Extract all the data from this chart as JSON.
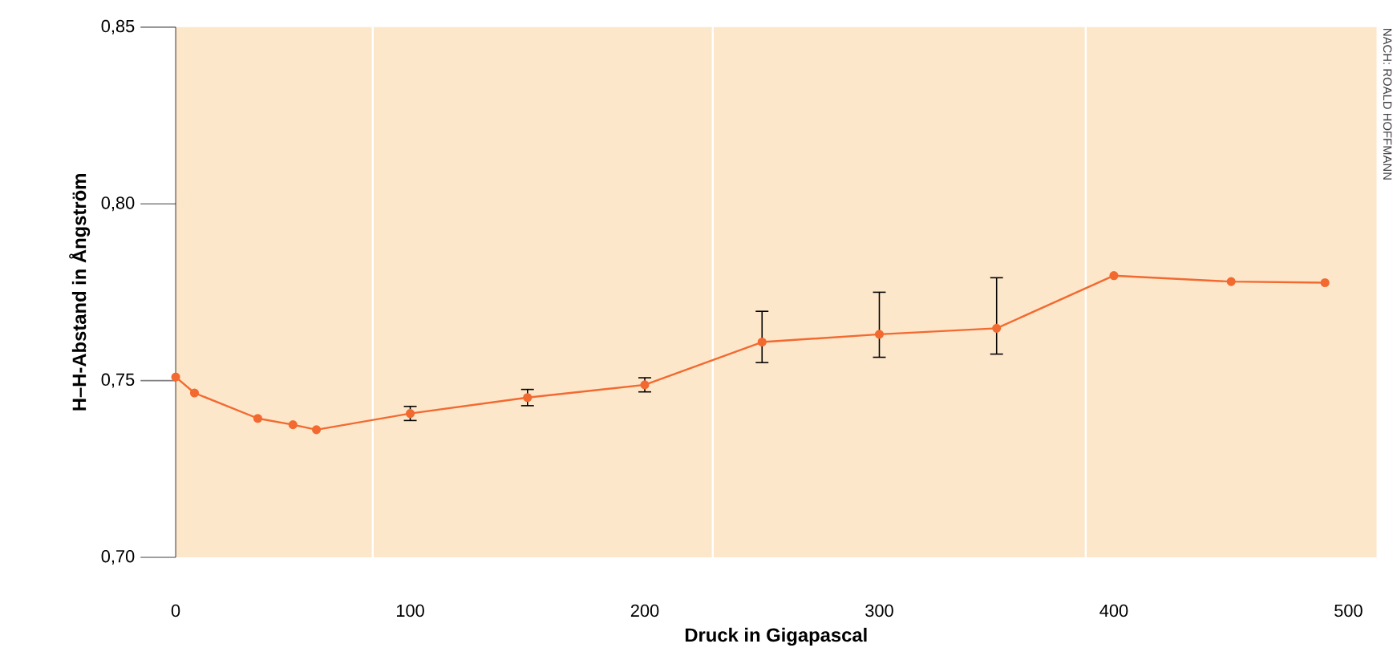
{
  "chart_data": {
    "type": "line",
    "xlabel": "Druck in Gigapascal",
    "ylabel": "H–H-Abstand in Ångström",
    "x": [
      0,
      8,
      35,
      50,
      60,
      100,
      150,
      200,
      250,
      300,
      350,
      400,
      450,
      490
    ],
    "series": [
      {
        "color": "#f26a30",
        "values": [
          0.751,
          0.7465,
          0.7393,
          0.7375,
          0.7361,
          0.7407,
          0.7452,
          0.7488,
          0.7609,
          0.7631,
          0.7648,
          0.7797,
          0.778,
          0.7777
        ],
        "errors": [
          null,
          null,
          null,
          null,
          null,
          0.002,
          0.0023,
          0.002,
          [
            0.7551,
            0.7696
          ],
          [
            0.7566,
            0.775
          ],
          [
            0.7575,
            0.7791
          ],
          null,
          null,
          null
        ]
      }
    ],
    "marker": "circle",
    "line_style": "solid",
    "xlim": [
      0,
      512
    ],
    "ylim": [
      0.7,
      0.85
    ],
    "xticks": [
      0,
      100,
      200,
      300,
      400,
      500
    ],
    "yticks": [
      {
        "value": 0.7,
        "label": "0,70"
      },
      {
        "value": 0.75,
        "label": "0,75"
      },
      {
        "value": 0.8,
        "label": "0,80"
      },
      {
        "value": 0.85,
        "label": "0,85"
      }
    ],
    "ref_lines": [
      {
        "axis": "x",
        "value": 84,
        "color": "#ffffff"
      },
      {
        "axis": "x",
        "value": 229,
        "color": "#ffffff"
      },
      {
        "axis": "x",
        "value": 388,
        "color": "#ffffff"
      }
    ],
    "annotations": [
      "NACH: ROALD HOFFMANN"
    ]
  }
}
